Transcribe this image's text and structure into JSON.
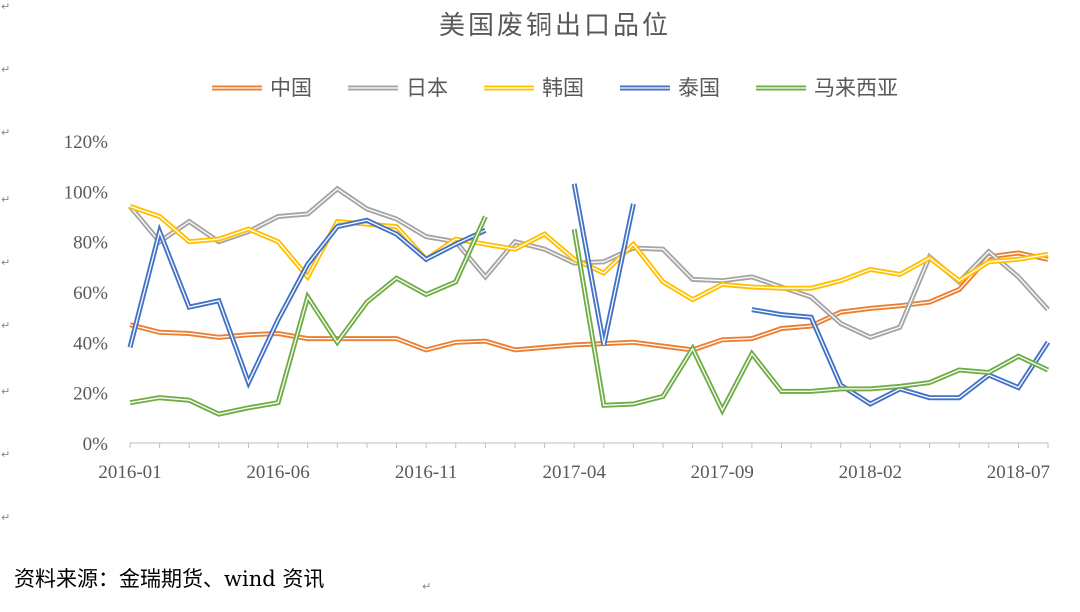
{
  "footer": {
    "source": "资料来源：金瑞期货、wind 资讯",
    "return_mark": "↵"
  },
  "chart_data": {
    "type": "line",
    "title": "美国废铜出口品位",
    "xlabel": "",
    "ylabel": "",
    "ylim": [
      0,
      1.2
    ],
    "yticks": [
      0,
      0.2,
      0.4,
      0.6,
      0.8,
      1.0,
      1.2
    ],
    "ytick_labels": [
      "0%",
      "20%",
      "40%",
      "60%",
      "80%",
      "100%",
      "120%"
    ],
    "xticks": [
      "2016-01",
      "2016-06",
      "2016-11",
      "2017-04",
      "2017-09",
      "2018-02",
      "2018-07"
    ],
    "grid": false,
    "legend_position": "top",
    "line_style": "double",
    "x": [
      "2016-01",
      "2016-02",
      "2016-03",
      "2016-04",
      "2016-05",
      "2016-06",
      "2016-07",
      "2016-08",
      "2016-09",
      "2016-10",
      "2016-11",
      "2016-12",
      "2017-01",
      "2017-02",
      "2017-03",
      "2017-04",
      "2017-05",
      "2017-06",
      "2017-07",
      "2017-08",
      "2017-09",
      "2017-10",
      "2017-11",
      "2017-12",
      "2018-01",
      "2018-02",
      "2018-03",
      "2018-04",
      "2018-05",
      "2018-06",
      "2018-07",
      "2018-08"
    ],
    "series": [
      {
        "name": "中国",
        "color": "#ED7D31",
        "values": [
          0.47,
          0.44,
          0.435,
          0.42,
          0.43,
          0.435,
          0.415,
          0.415,
          0.415,
          0.415,
          0.37,
          0.4,
          0.405,
          0.37,
          0.38,
          0.39,
          0.395,
          0.4,
          0.385,
          0.37,
          0.41,
          0.415,
          0.455,
          0.465,
          0.52,
          0.535,
          0.545,
          0.56,
          0.61,
          0.74,
          0.755,
          0.73
        ]
      },
      {
        "name": "日本",
        "color": "#A5A5A5",
        "values": [
          0.94,
          0.8,
          0.88,
          0.8,
          0.84,
          0.9,
          0.91,
          1.01,
          0.93,
          0.89,
          0.82,
          0.8,
          0.66,
          0.8,
          0.77,
          0.715,
          0.72,
          0.775,
          0.77,
          0.65,
          0.645,
          0.66,
          0.62,
          0.58,
          0.475,
          0.42,
          0.46,
          0.74,
          0.64,
          0.76,
          0.66,
          0.53
        ]
      },
      {
        "name": "韩国",
        "color": "#FFC000",
        "values": [
          0.94,
          0.9,
          0.8,
          0.81,
          0.85,
          0.8,
          0.66,
          0.88,
          0.87,
          0.86,
          0.73,
          0.81,
          0.79,
          0.77,
          0.83,
          0.73,
          0.675,
          0.79,
          0.64,
          0.57,
          0.63,
          0.62,
          0.615,
          0.615,
          0.645,
          0.69,
          0.67,
          0.735,
          0.645,
          0.72,
          0.73,
          0.75
        ]
      },
      {
        "name": "泰国",
        "color": "#4472C4",
        "values": [
          0.38,
          0.84,
          0.54,
          0.565,
          0.24,
          0.49,
          0.71,
          0.86,
          0.885,
          0.83,
          0.73,
          0.79,
          0.845,
          null,
          null,
          1.03,
          0.39,
          0.95,
          null,
          null,
          null,
          0.53,
          0.51,
          0.5,
          0.23,
          0.155,
          0.215,
          0.18,
          0.18,
          0.27,
          0.22,
          0.4
        ]
      },
      {
        "name": "马来西亚",
        "color": "#70AD47",
        "values": [
          0.16,
          0.18,
          0.17,
          0.115,
          0.14,
          0.16,
          0.58,
          0.4,
          0.56,
          0.655,
          0.59,
          0.64,
          0.9,
          null,
          null,
          0.85,
          0.15,
          0.155,
          0.185,
          0.375,
          0.13,
          0.355,
          0.205,
          0.205,
          0.215,
          0.215,
          0.225,
          0.24,
          0.29,
          0.28,
          0.345,
          0.29
        ]
      }
    ]
  }
}
